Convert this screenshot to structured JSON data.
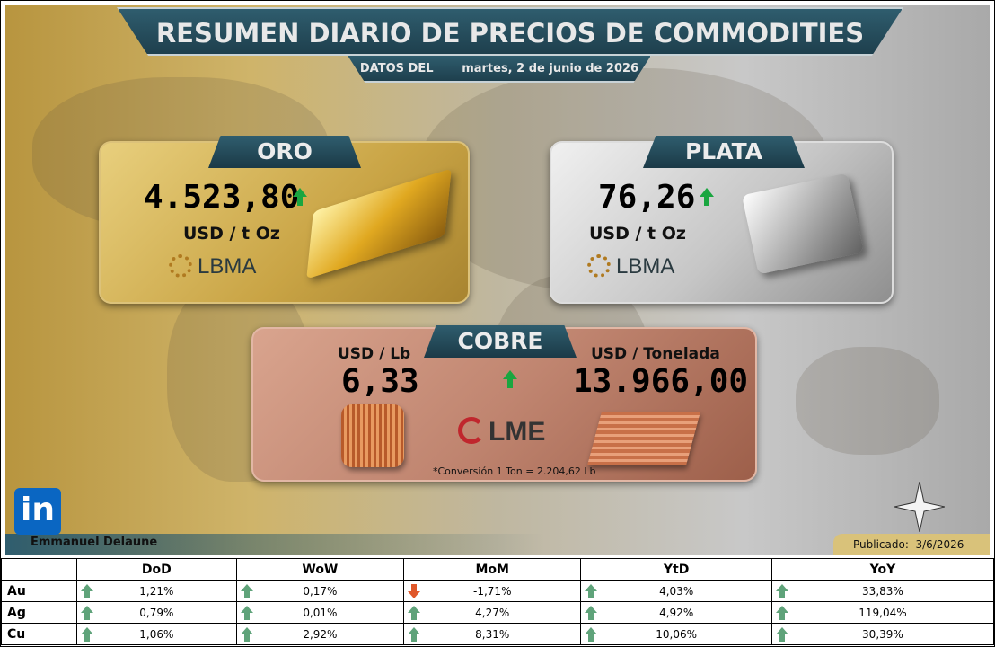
{
  "header": {
    "title": "RESUMEN DIARIO DE PRECIOS DE COMMODITIES",
    "date_label": "DATOS DEL",
    "date": "martes, 2 de junio de 2026"
  },
  "cards": {
    "oro": {
      "name": "ORO",
      "price": "4.523,80",
      "unit": "USD / t Oz",
      "source": "LBMA"
    },
    "plata": {
      "name": "PLATA",
      "price": "76,26",
      "unit": "USD / t Oz",
      "source": "LBMA"
    },
    "cobre": {
      "name": "COBRE",
      "unit_lb": "USD / Lb",
      "price_lb": "6,33",
      "unit_ton": "USD / Tonelada",
      "price_ton": "13.966,00",
      "source": "LME",
      "note": "*Conversión 1 Ton = 2.204,62 Lb"
    }
  },
  "footer": {
    "linkedin": "in",
    "author": "Emmanuel Delaune",
    "published": "Publicado:  3/6/2026"
  },
  "table": {
    "columns": [
      "DoD",
      "WoW",
      "MoM",
      "YtD",
      "YoY"
    ],
    "rows": [
      {
        "label": "Au",
        "values": [
          "1,21%",
          "0,17%",
          "-1,71%",
          "4,03%",
          "33,83%"
        ]
      },
      {
        "label": "Ag",
        "values": [
          "0,79%",
          "0,01%",
          "4,27%",
          "4,92%",
          "119,04%"
        ]
      },
      {
        "label": "Cu",
        "values": [
          "1,06%",
          "2,92%",
          "8,31%",
          "10,06%",
          "30,39%"
        ]
      }
    ]
  }
}
